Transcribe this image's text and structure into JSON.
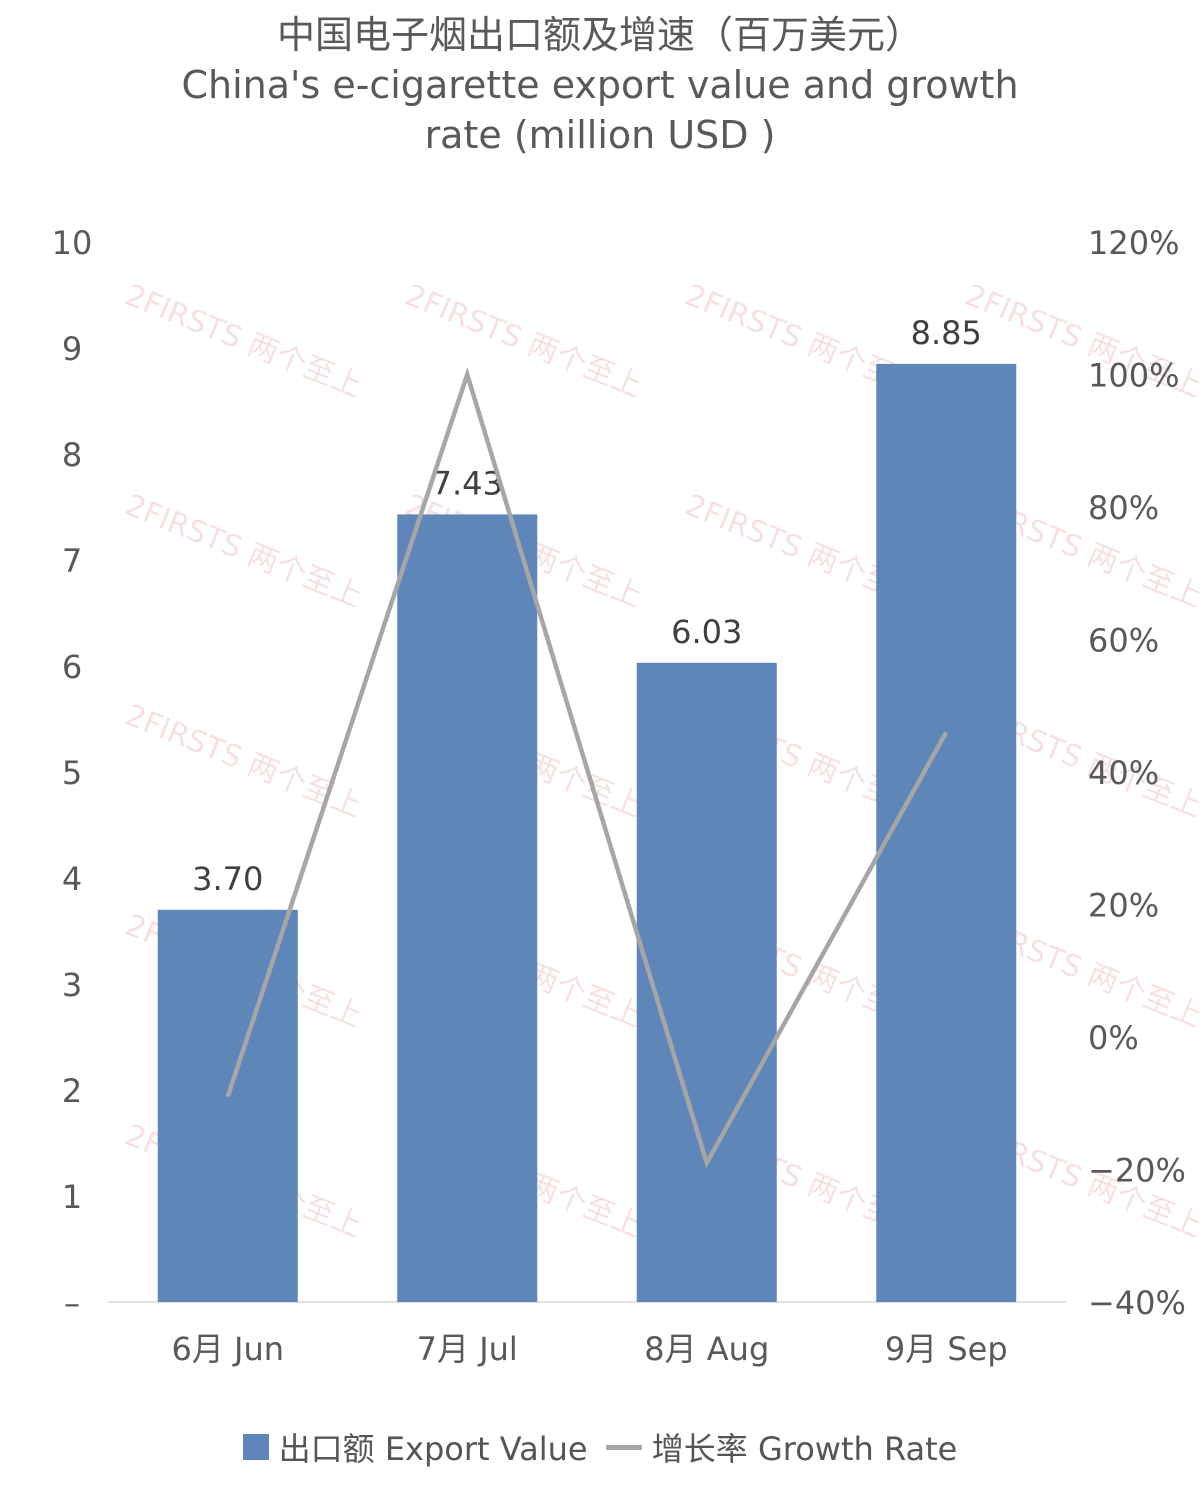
{
  "chart_data": {
    "type": "bar+line",
    "title": "中国电子烟出口额及增速（百万美元）",
    "subtitle_line1": "China's e-cigarette export value and growth",
    "subtitle_line2": "rate (million USD )",
    "categories": [
      "6月 Jun",
      "7月 Jul",
      "8月 Aug",
      "9月 Sep"
    ],
    "series": [
      {
        "name": "出口额 Export Value",
        "type": "bar",
        "axis": "left",
        "values": [
          3.7,
          7.43,
          6.03,
          8.85
        ],
        "labels": [
          "3.70",
          "7.43",
          "6.03",
          "8.85"
        ],
        "color": "#5e86b8"
      },
      {
        "name": "增长率 Growth Rate",
        "type": "line",
        "axis": "right",
        "values": [
          -9,
          100,
          -19,
          46
        ],
        "color": "#a6a6a6"
      }
    ],
    "left_axis": {
      "ylim": [
        0,
        10
      ],
      "ticks": [
        "–",
        "1",
        "2",
        "3",
        "4",
        "5",
        "6",
        "7",
        "8",
        "9",
        "10"
      ]
    },
    "right_axis": {
      "ylim": [
        -40,
        120
      ],
      "ticks": [
        "-40%",
        "-20%",
        "0%",
        "20%",
        "40%",
        "60%",
        "80%",
        "100%",
        "120%"
      ]
    },
    "legend_position": "bottom",
    "grid": false
  },
  "watermark": "2FIRSTS 两个至上"
}
